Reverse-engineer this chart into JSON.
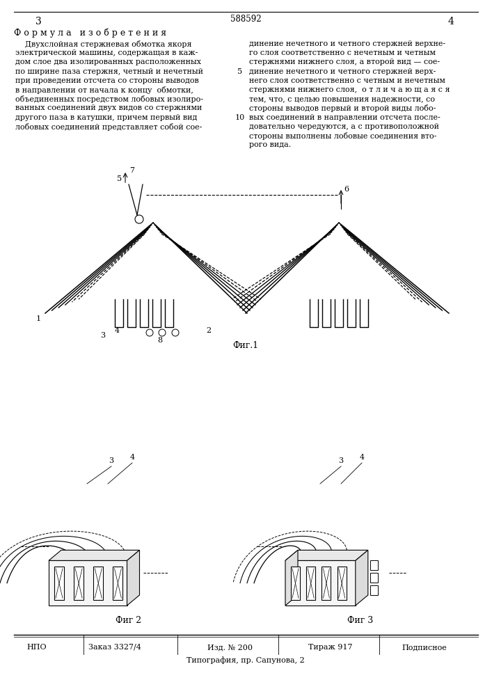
{
  "patent_number": "588592",
  "page_left": "3",
  "page_right": "4",
  "title_formula": "Ф о р м у л а   и з о б р е т е н и я",
  "left_body_lines": [
    "    Двухслойная стержневая обмотка якоря",
    "электрической машины, содержащая в каж-",
    "дом слое два изолированных расположенных",
    "по ширине паза стержня, четный и нечетный",
    "при проведении отсчета со стороны выводов",
    "в направлении от начала к концу  обмотки,",
    "объединенных посредством лобовых изолиро-",
    "ванных соединений двух видов со стержнями",
    "другого паза в катушки, причем первый вид",
    "лобовых соединений представляет собой сое-"
  ],
  "right_body_lines": [
    "динение нечетного и четного стержней верхне-",
    "го слоя соответственно с нечетным и четным",
    "стержнями нижнего слоя, а второй вид — сое-",
    "динение нечетного и четного стержней верх-",
    "него слоя соответственно с четным и нечетным",
    "стержнями нижнего слоя,  о т л и ч а ю щ а я с я",
    "тем, что, с целью повышения надежности, со",
    "стороны выводов первый и второй виды лобо-",
    "вых соединений в направлении отсчета после-",
    "довательно чередуются, а с противоположной",
    "стороны выполнены лобовые соединения вто-",
    "рого вида."
  ],
  "fig1_label": "Фиг.1",
  "fig2_label": "Фиг 2",
  "fig3_label": "Фиг 3",
  "footer_npo": "НПО",
  "footer_zakaz": "Заказ 3327/4",
  "footer_izd": "Изд. № 200",
  "footer_tirazh": "Тираж 917",
  "footer_podpisnoe": "Подписное",
  "footer_tipografia": "Типография, пр. Сапунова, 2",
  "bg_color": "#ffffff",
  "text_color": "#000000",
  "line_color": "#000000"
}
